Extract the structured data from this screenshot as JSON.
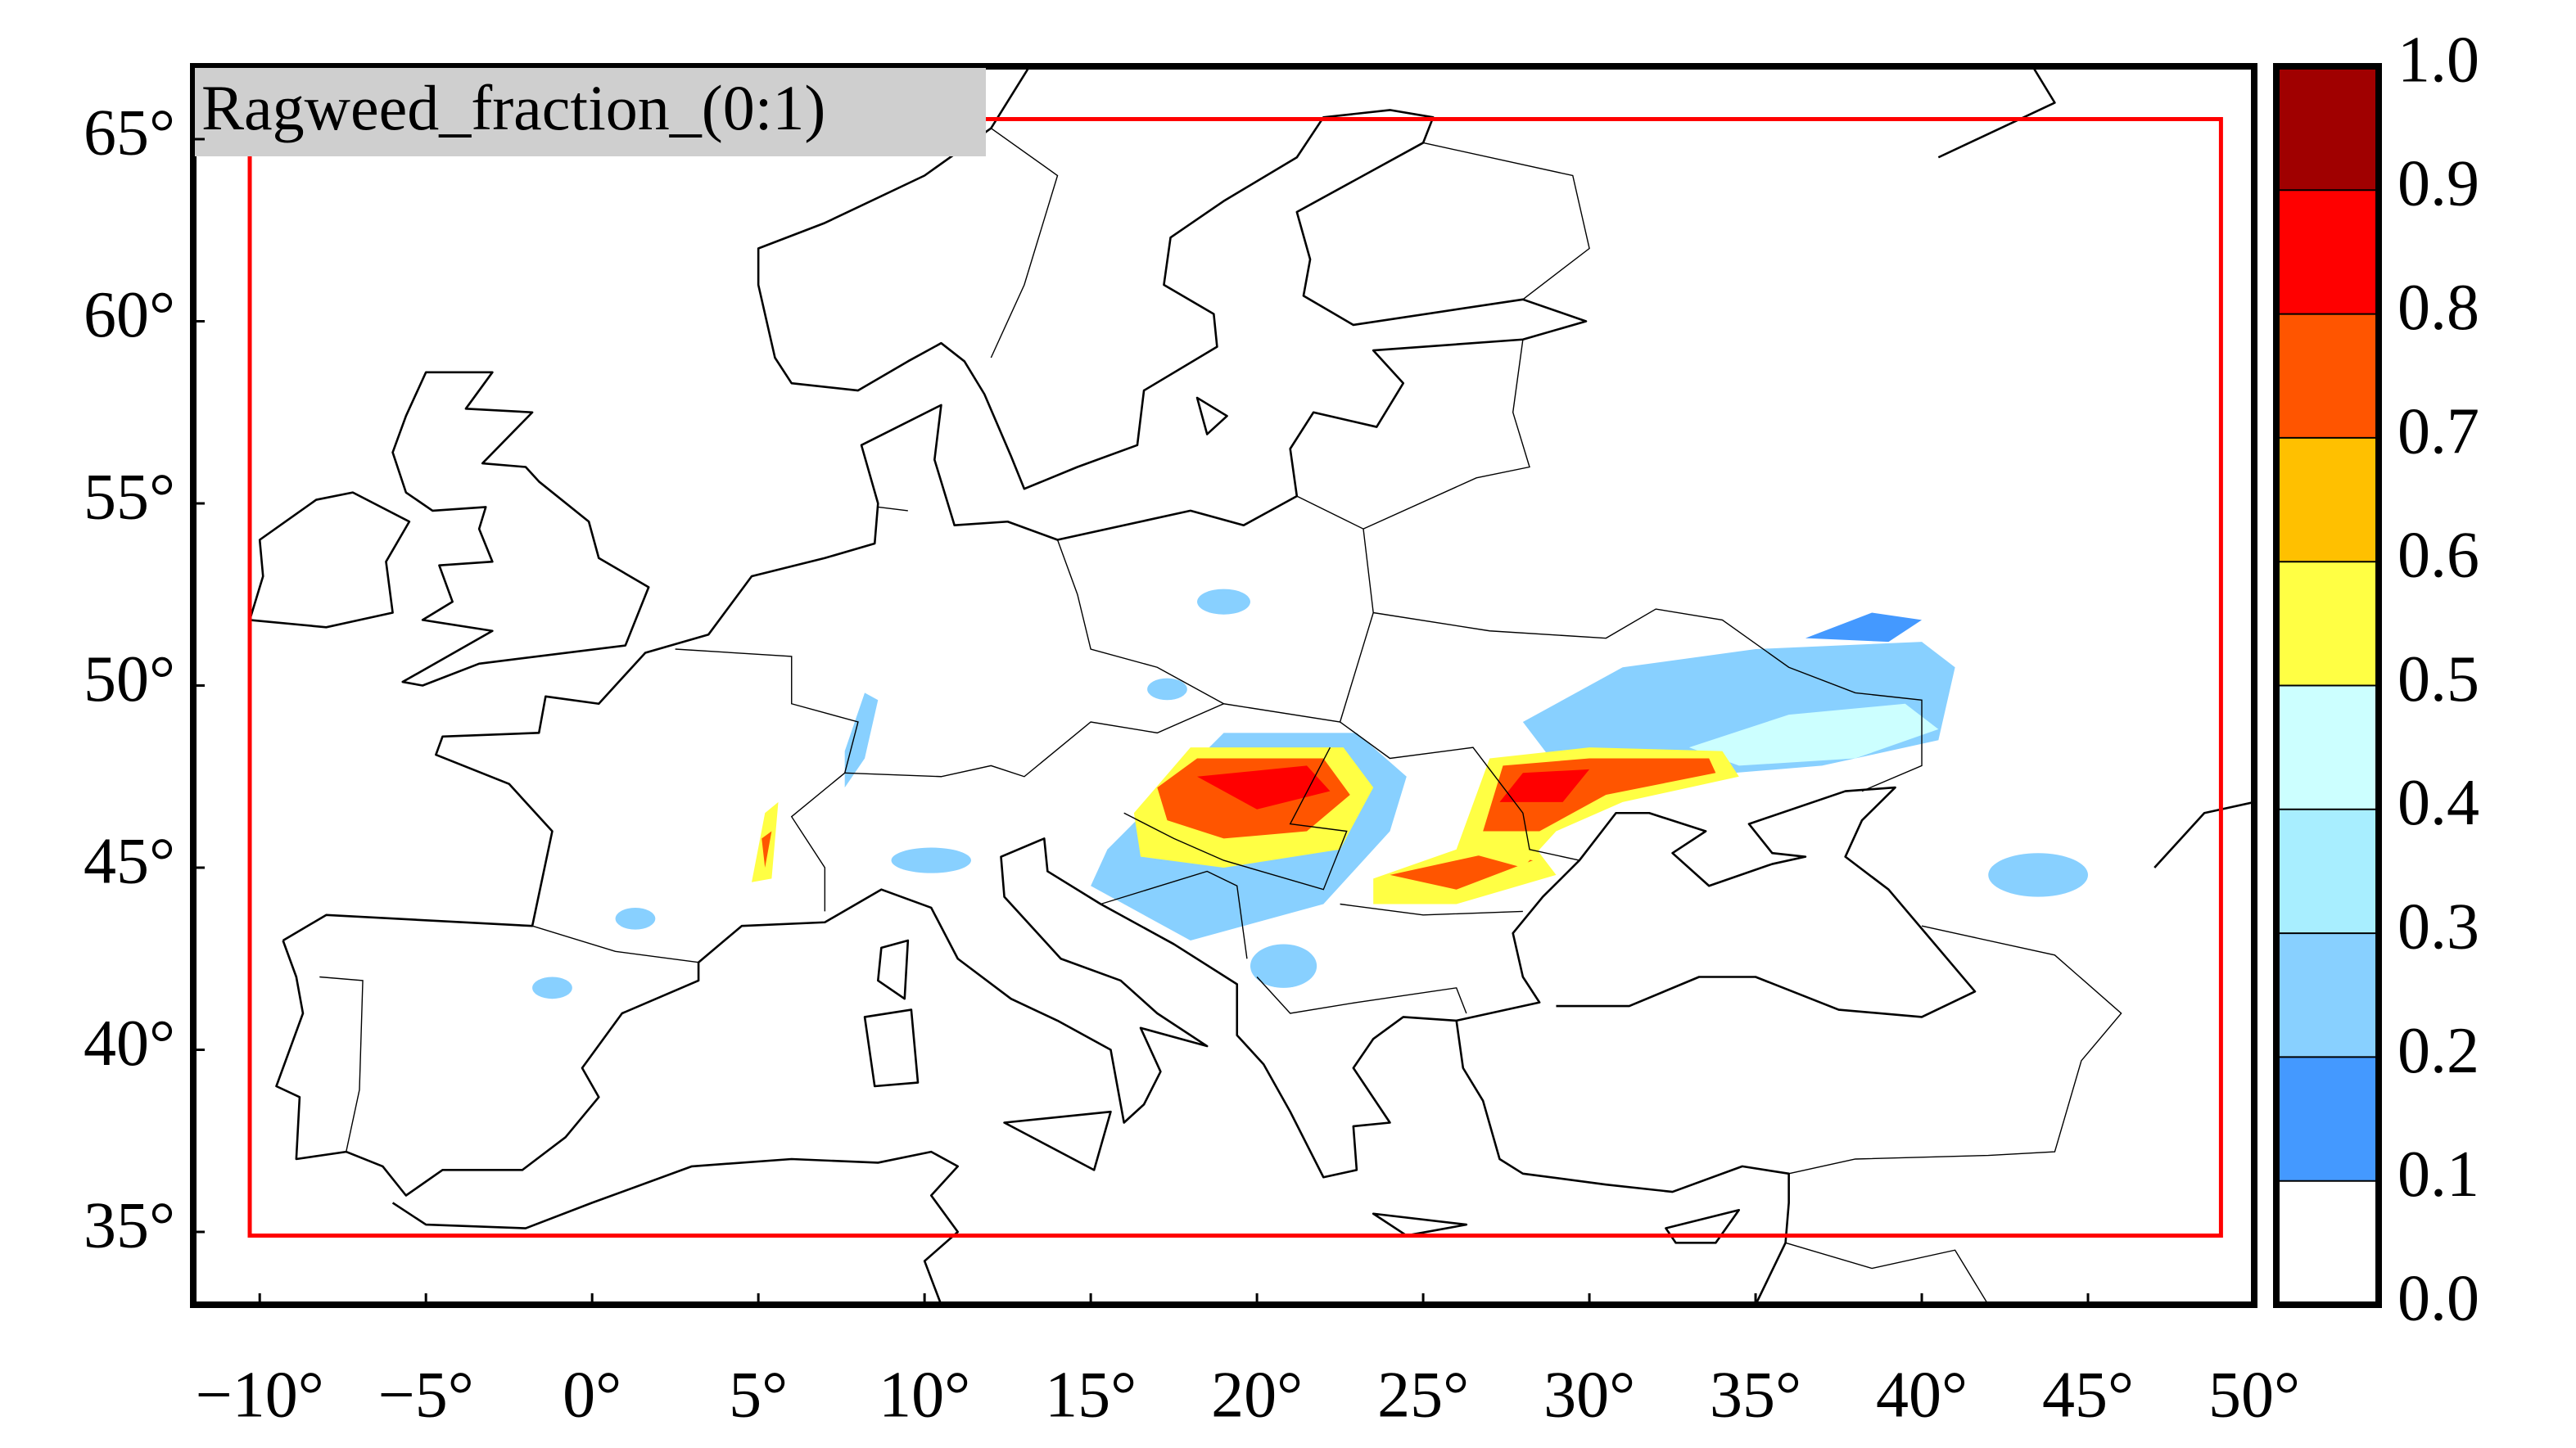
{
  "chart_data": {
    "type": "map",
    "title": "Ragweed_fraction_(0:1)",
    "xlim": [
      -12,
      50
    ],
    "ylim": [
      33,
      67
    ],
    "xticks": [
      {
        "value": -10,
        "label": "−10°"
      },
      {
        "value": -5,
        "label": "−5°"
      },
      {
        "value": 0,
        "label": "0°"
      },
      {
        "value": 5,
        "label": "5°"
      },
      {
        "value": 10,
        "label": "10°"
      },
      {
        "value": 15,
        "label": "15°"
      },
      {
        "value": 20,
        "label": "20°"
      },
      {
        "value": 25,
        "label": "25°"
      },
      {
        "value": 30,
        "label": "30°"
      },
      {
        "value": 35,
        "label": "35°"
      },
      {
        "value": 40,
        "label": "40°"
      },
      {
        "value": 45,
        "label": "45°"
      },
      {
        "value": 50,
        "label": "50°"
      }
    ],
    "yticks": [
      {
        "value": 35,
        "label": "35°"
      },
      {
        "value": 40,
        "label": "40°"
      },
      {
        "value": 45,
        "label": "45°"
      },
      {
        "value": 50,
        "label": "50°"
      },
      {
        "value": 55,
        "label": "55°"
      },
      {
        "value": 60,
        "label": "60°"
      },
      {
        "value": 65,
        "label": "65°"
      }
    ],
    "colorbar": {
      "lim": [
        0,
        1
      ],
      "ticks": [
        {
          "value": 0,
          "label": "0.0"
        },
        0.1,
        0.2,
        0.3,
        0.4,
        0.5,
        0.6,
        0.7,
        0.8,
        0.9,
        {
          "value": 1,
          "label": "1.0"
        }
      ],
      "colors": [
        "#ffffff",
        "#4499ff",
        "#88d0ff",
        "#a8eeff",
        "#ccffff",
        "#ffff44",
        "#ffc000",
        "#ff5500",
        "#ff0000",
        "#a00000"
      ]
    }
  }
}
